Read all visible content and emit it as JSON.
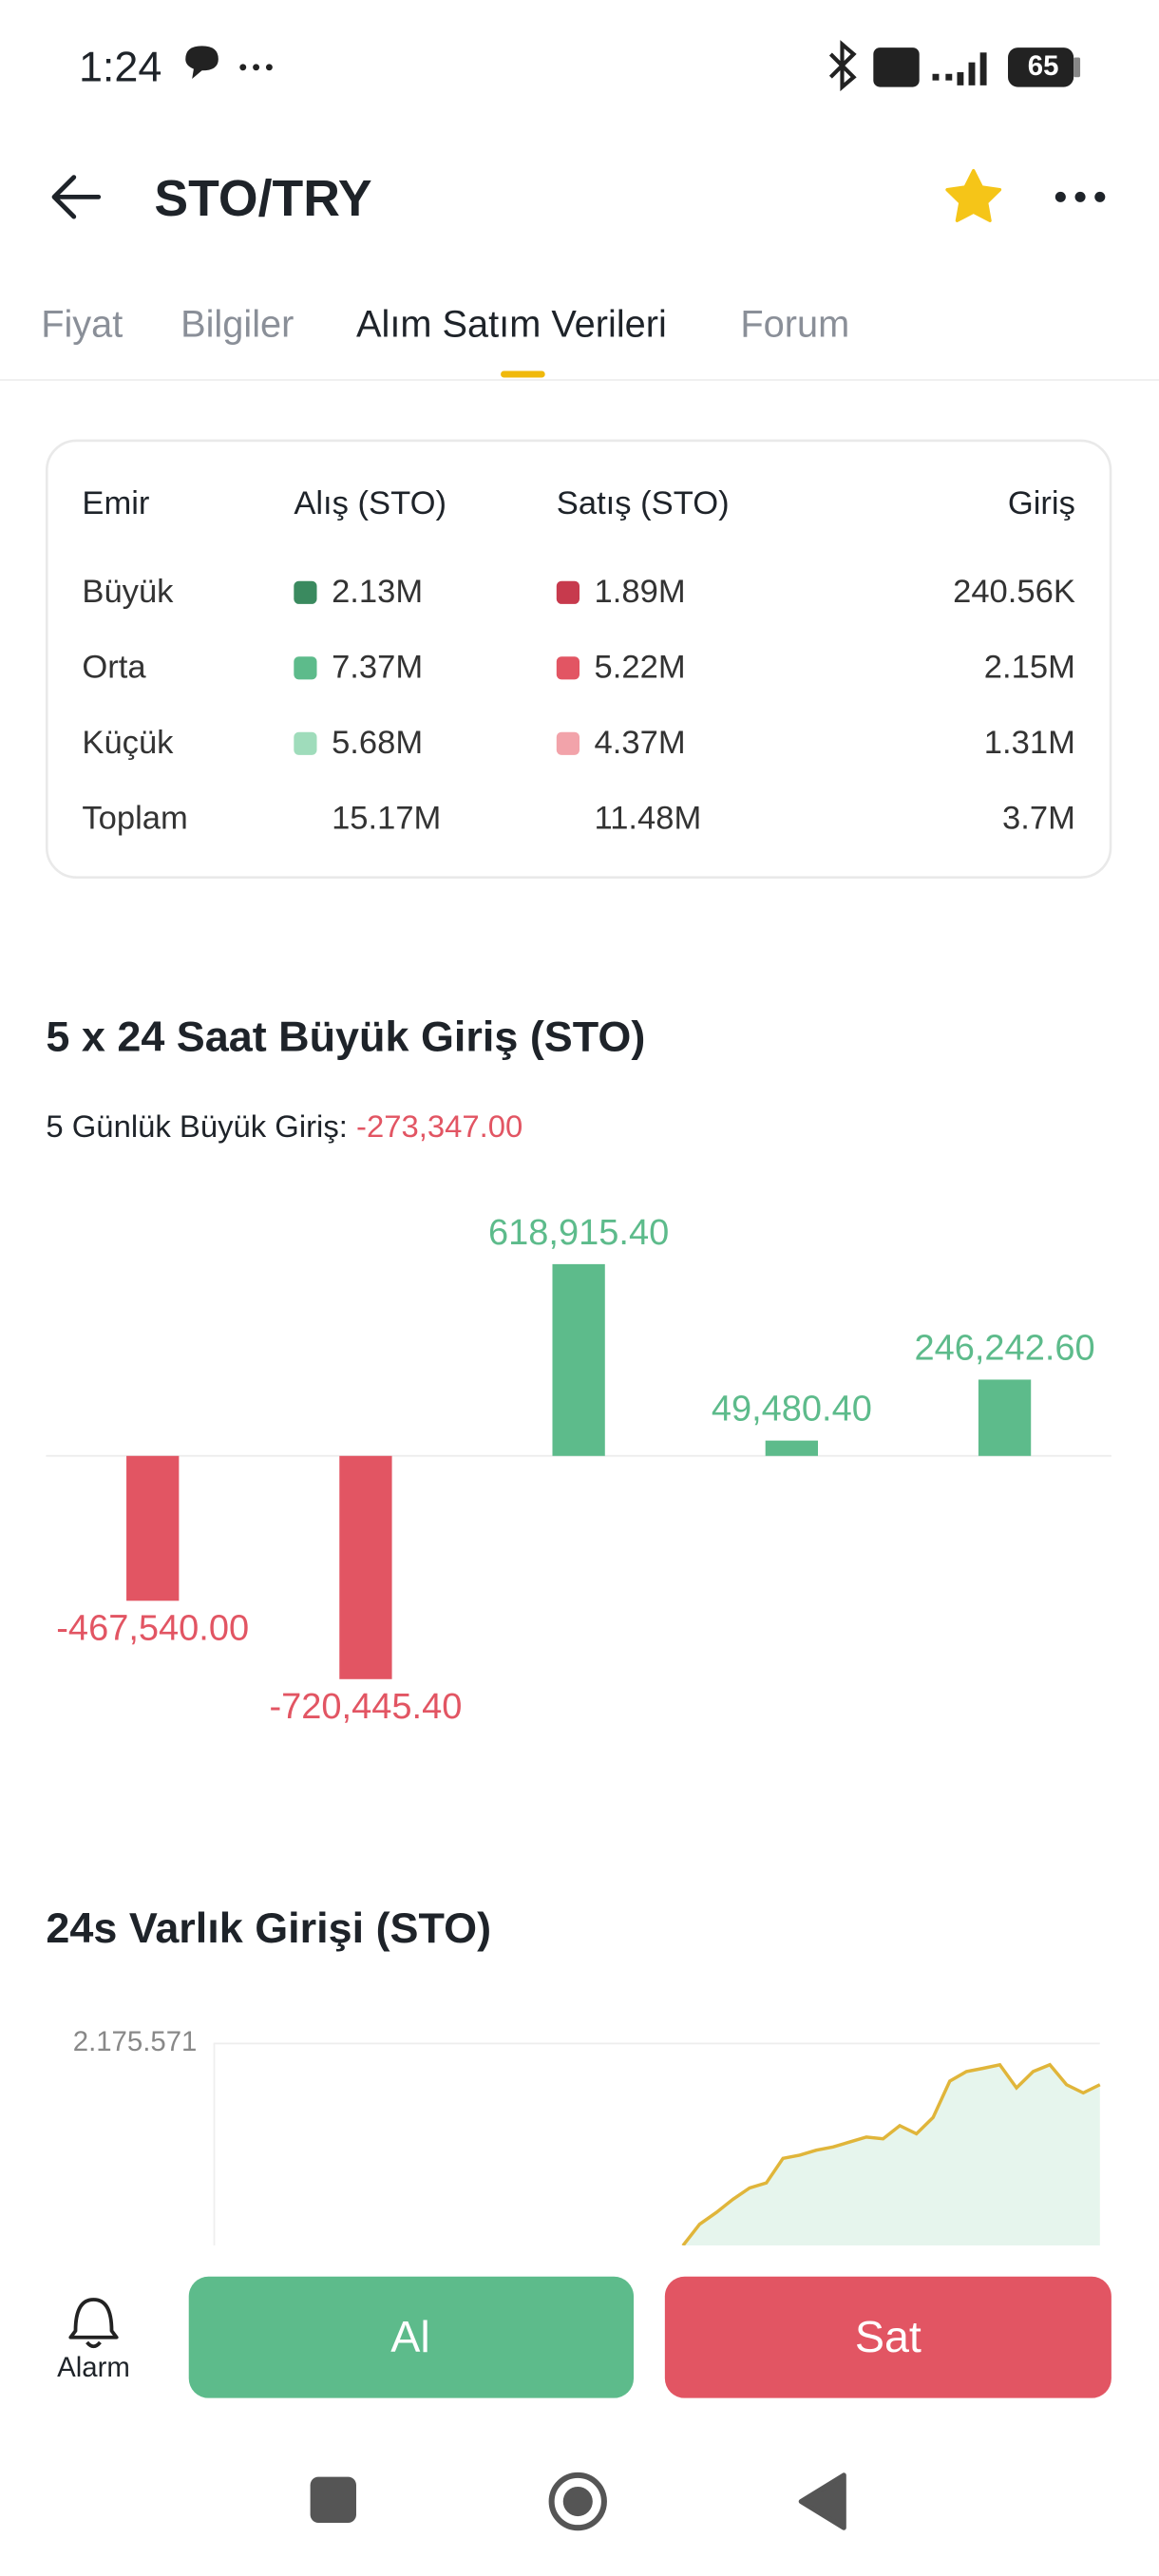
{
  "status_bar": {
    "time": "1:24",
    "battery": "65"
  },
  "header": {
    "title": "STO/TRY"
  },
  "tabs": [
    "Fiyat",
    "Bilgiler",
    "Alım Satım Verileri",
    "Forum"
  ],
  "active_tab": 2,
  "order_table": {
    "header": [
      "Emir",
      "Alış (STO)",
      "Satış (STO)",
      "Giriş"
    ],
    "rows": [
      [
        "Büyük",
        "2.13M",
        "1.89M",
        "240.56K"
      ],
      [
        "Orta",
        "7.37M",
        "5.22M",
        "2.15M"
      ],
      [
        "Küçük",
        "5.68M",
        "4.37M",
        "1.31M"
      ],
      [
        "Toplam",
        "15.17M",
        "11.48M",
        "3.7M"
      ]
    ],
    "buy_colors": [
      "#3a8a5f",
      "#5dbb8b",
      "#9fdcbb"
    ],
    "sell_colors": [
      "#c73a4d",
      "#e25563",
      "#f2a3aa"
    ]
  },
  "big_inflow": {
    "title": "5 x 24 Saat Büyük Giriş (STO)",
    "summary_label": "5 Günlük Büyük Giriş:",
    "summary_value": "-273,347.00",
    "chart_data": {
      "type": "bar",
      "values": [
        -467540,
        -720445.4,
        618915.4,
        49480.4,
        246242.6
      ],
      "value_labels": [
        "-467,540.00",
        "-720,445.40",
        "618,915.40",
        "49,480.40",
        "246,242.60"
      ],
      "colors": [
        "#e25563",
        "#e25563",
        "#5dbb8b",
        "#5dbb8b",
        "#5dbb8b"
      ]
    }
  },
  "asset_inflow": {
    "title": "24s Varlık Girişi (STO)",
    "chart_data": {
      "type": "area",
      "values": [
        1608000,
        1668000,
        1701000,
        1738000,
        1770000,
        1784000,
        1853000,
        1862000,
        1876000,
        1885000,
        1899000,
        1913000,
        1908000,
        1945000,
        1922000,
        1968000,
        2070000,
        2097000,
        2106000,
        2116000,
        2051000,
        2097000,
        2116000,
        2060000,
        2037000,
        2060000
      ],
      "ylim": [
        1000000,
        2175571
      ],
      "yticks": [
        {
          "value": 2175571,
          "label": "2.175.571"
        }
      ],
      "color": "#e0b53a",
      "fill": "#e6f5ed"
    }
  },
  "actions": {
    "alarm": "Alarm",
    "buy": "Al",
    "sell": "Sat"
  }
}
